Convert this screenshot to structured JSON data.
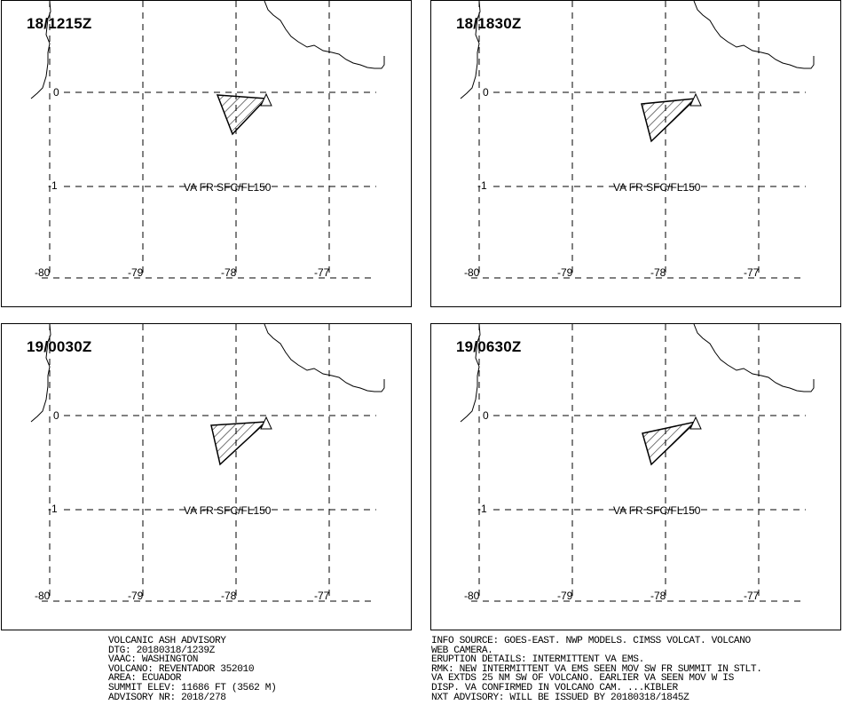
{
  "panels": [
    {
      "time": "18/1215Z",
      "level_label": "VA FR SFC/FL150"
    },
    {
      "time": "18/1830Z",
      "level_label": "VA FR SFC/FL150"
    },
    {
      "time": "19/0030Z",
      "level_label": "VA FR SFC/FL150"
    },
    {
      "time": "19/0630Z",
      "level_label": "VA FR SFC/FL150"
    }
  ],
  "lat_labels": [
    "0",
    "-1"
  ],
  "lon_labels": [
    "-80",
    "-79",
    "-78",
    "-77"
  ],
  "advisory_left": [
    "VOLCANIC ASH ADVISORY",
    "DTG: 20180318/1239Z",
    "VAAC: WASHINGTON",
    "VOLCANO: REVENTADOR 352010",
    "AREA: ECUADOR",
    "SUMMIT ELEV: 11686 FT (3562 M)",
    "ADVISORY NR: 2018/278"
  ],
  "advisory_right": [
    "INFO SOURCE: GOES-EAST. NWP MODELS. CIMSS VOLCAT. VOLCANO",
    "WEB CAMERA.",
    "ERUPTION DETAILS: INTERMITTENT VA EMS.",
    "RMK: NEW INTERMITTENT VA EMS SEEN MOV SW FR SUMMIT IN STLT.",
    "VA EXTDS 25 NM SW OF VOLCANO. EARLIER VA SEEN MOV W IS",
    "DISP. VA CONFIRMED IN VOLCANO CAM. ...KIBLER",
    "NXT ADVISORY: WILL BE ISSUED BY 20180318/1845Z"
  ],
  "map": {
    "grid_style": "dashed",
    "ash_polygon_fill": "diagonal hatch",
    "volcano_marker": "triangle",
    "volcano_marker_color": "#000000"
  }
}
